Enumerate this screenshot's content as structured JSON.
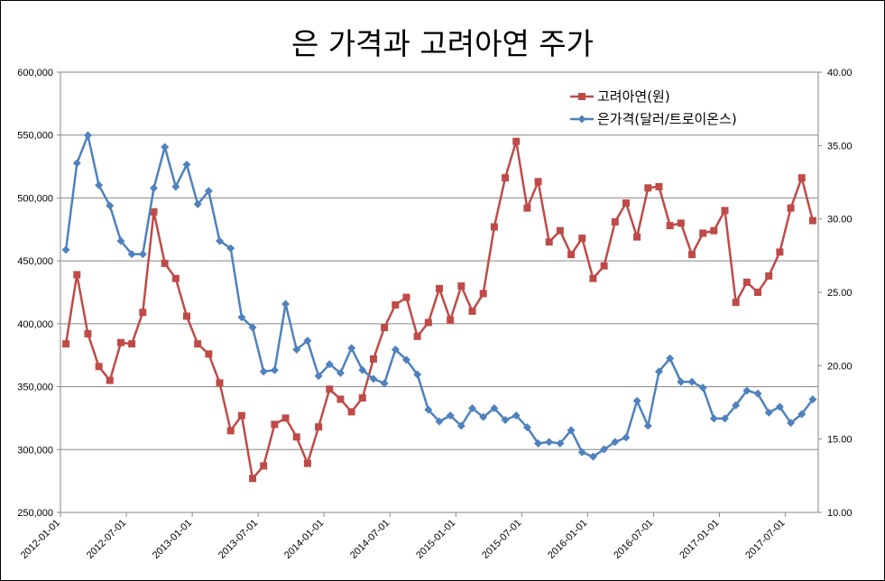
{
  "chart_data": {
    "type": "line",
    "title": "은 가격과 고려아연 주가",
    "x_tick_labels": [
      "2012-01-01",
      "2012-07-01",
      "2013-01-01",
      "2013-07-01",
      "2014-01-01",
      "2014-07-01",
      "2015-01-01",
      "2015-07-01",
      "2016-01-01",
      "2016-07-01",
      "2017-01-01",
      "2017-07-01"
    ],
    "y_left": {
      "range": [
        250000,
        600000
      ],
      "tick_labels": [
        "250,000",
        "300,000",
        "350,000",
        "400,000",
        "450,000",
        "500,000",
        "550,000",
        "600,000"
      ]
    },
    "y_right": {
      "range": [
        10,
        40
      ],
      "tick_labels": [
        "10.00",
        "15.00",
        "20.00",
        "25.00",
        "30.00",
        "35.00",
        "40.00"
      ]
    },
    "grid": true,
    "legend_position": "top-right",
    "x_start": "2012-01",
    "series": [
      {
        "name": "고려아연(원)",
        "axis": "left",
        "color": "#be4b48",
        "marker": "square",
        "values": [
          384000,
          439000,
          392000,
          366000,
          355000,
          385000,
          384000,
          409000,
          489000,
          448000,
          436000,
          406000,
          384000,
          376000,
          353000,
          315000,
          327000,
          277000,
          287000,
          320000,
          325000,
          310000,
          289000,
          318000,
          348000,
          340000,
          330000,
          341000,
          372000,
          397000,
          415000,
          421000,
          390000,
          401000,
          428000,
          403000,
          430000,
          410000,
          424000,
          477000,
          516000,
          545000,
          492000,
          513000,
          465000,
          474000,
          455000,
          468000,
          436000,
          446000,
          481000,
          496000,
          469000,
          508000,
          509000,
          478000,
          480000,
          455000,
          472000,
          474000,
          490000,
          417000,
          433000,
          425000,
          438000,
          457000,
          492000,
          516000,
          482000
        ]
      },
      {
        "name": "은가격(달러/트로이온스)",
        "axis": "right",
        "color": "#4f81bd",
        "marker": "diamond",
        "values": [
          27.9,
          33.8,
          35.7,
          32.3,
          30.9,
          28.5,
          27.6,
          27.6,
          32.1,
          34.9,
          32.2,
          33.7,
          31.0,
          31.9,
          28.5,
          28.0,
          23.3,
          22.6,
          19.6,
          19.7,
          24.2,
          21.1,
          21.7,
          19.3,
          20.1,
          19.5,
          21.2,
          19.7,
          19.1,
          18.8,
          21.1,
          20.4,
          19.4,
          17.0,
          16.2,
          16.6,
          15.9,
          17.1,
          16.5,
          17.1,
          16.3,
          16.6,
          15.8,
          14.7,
          14.8,
          14.7,
          15.6,
          14.1,
          13.8,
          14.3,
          14.8,
          15.1,
          17.6,
          15.9,
          19.6,
          20.5,
          18.9,
          18.9,
          18.5,
          16.4,
          16.4,
          17.3,
          18.3,
          18.1,
          16.8,
          17.2,
          16.1,
          16.7,
          17.7
        ]
      }
    ]
  }
}
